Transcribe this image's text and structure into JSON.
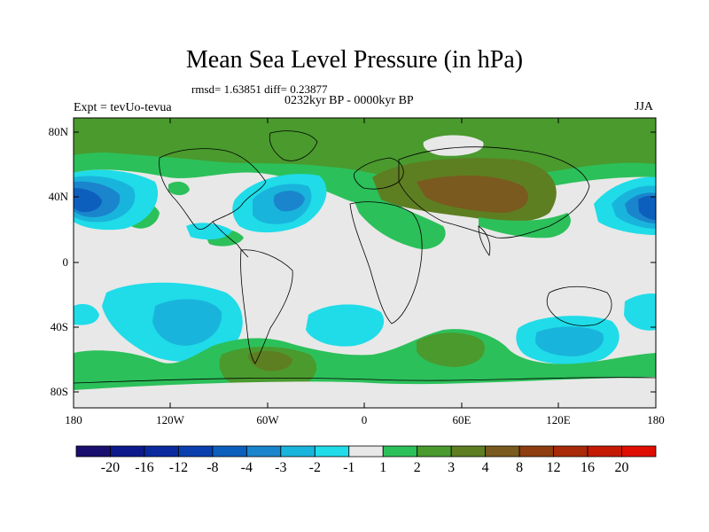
{
  "title": "Mean Sea Level Pressure (in hPa)",
  "stats": "rmsd= 1.63851 diff= 0.23877",
  "experiment": "Expt = tevUo-tevua",
  "period": "0232kyr BP - 0000kyr BP",
  "season": "JJA",
  "lat_labels": [
    "80N",
    "40N",
    "0",
    "40S",
    "80S"
  ],
  "lon_labels": [
    "180",
    "120W",
    "60W",
    "0",
    "60E",
    "120E",
    "180"
  ],
  "colorbar": {
    "labels": [
      "-20",
      "-16",
      "-12",
      "-8",
      "-4",
      "-3",
      "-2",
      "-1",
      "1",
      "2",
      "3",
      "4",
      "8",
      "12",
      "16",
      "20"
    ],
    "colors": [
      "#1a0f6e",
      "#0d1a8c",
      "#0a2a9e",
      "#0b3fae",
      "#0d5fbe",
      "#1a85cc",
      "#19b4dc",
      "#1fdce8",
      "#e8e8e8",
      "#2cc05a",
      "#4a9a2e",
      "#5e7e22",
      "#7a5a1e",
      "#8e3e10",
      "#a82a08",
      "#c41a04",
      "#e00e02"
    ]
  },
  "colors": {
    "ocean_neutral": "#e8e8e8",
    "green_light": "#2cc05a",
    "green_mid": "#4a9a2e",
    "olive": "#5e7e22",
    "brown": "#7a5a1e",
    "cyan": "#1fdce8",
    "blue_light": "#19b4dc",
    "blue_mid": "#1a85cc",
    "blue_dark": "#0d5fbe"
  }
}
